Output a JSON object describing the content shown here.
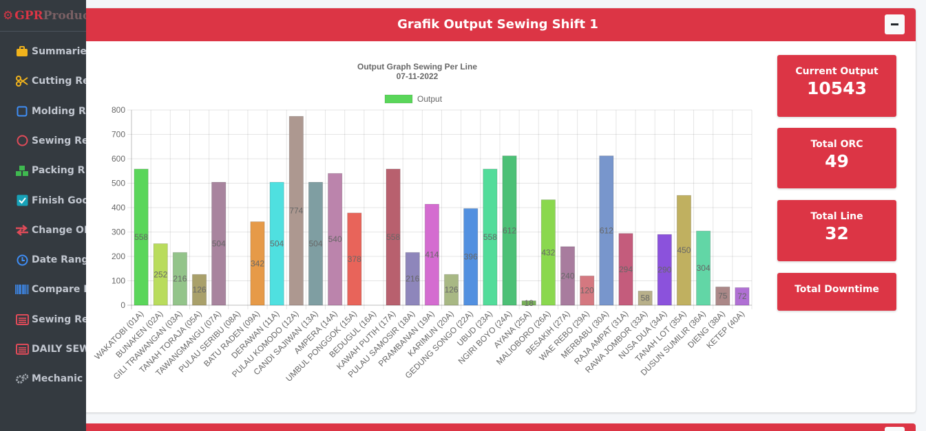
{
  "brand": {
    "prefix": "GPR",
    "suffix": "Produc"
  },
  "sidebar": {
    "items": [
      {
        "label": "Summarie",
        "icon": "briefcase-icon",
        "color": "#f1b31c"
      },
      {
        "label": "Cutting Re",
        "icon": "scissors-icon",
        "color": "#f1b31c"
      },
      {
        "label": "Molding R",
        "icon": "square-icon",
        "color": "#3f8ef6"
      },
      {
        "label": "Sewing Re",
        "icon": "circle-icon",
        "color": "#e04b59"
      },
      {
        "label": "Packing R",
        "icon": "cubes-icon",
        "color": "#3fb950"
      },
      {
        "label": "Finish Goo",
        "icon": "check-square-icon",
        "color": "#17a2b8"
      },
      {
        "label": "Change OI",
        "icon": "exchange-icon",
        "color": "#e04b59"
      },
      {
        "label": "Date Rang",
        "icon": "clock-icon",
        "color": "#3f8ef6"
      },
      {
        "label": "Compare I",
        "icon": "barcode-icon",
        "color": "#3f8ef6"
      },
      {
        "label": "Sewing Re",
        "icon": "list-alt-icon",
        "color": "#e04b59"
      },
      {
        "label": "DAILY SEW",
        "icon": "list-alt-icon",
        "color": "#e04b59"
      },
      {
        "label": "Mechanic I",
        "icon": "gears-icon",
        "color": "#a0a6ad"
      }
    ]
  },
  "card": {
    "title": "Grafik Output Sewing Shift 1",
    "collapse_label": "−"
  },
  "stats": [
    {
      "label": "Current Output",
      "value": "10543"
    },
    {
      "label": "Total ORC",
      "value": "49"
    },
    {
      "label": "Total Line",
      "value": "32"
    },
    {
      "label": "Total Downtime",
      "value": ""
    }
  ],
  "chart_data": {
    "type": "bar",
    "title": "Output Graph Sewing Per Line",
    "subtitle": "07-11-2022",
    "legend": {
      "label": "Output",
      "color": "#5ad65a",
      "placement": "top"
    },
    "ylim": [
      0,
      800
    ],
    "yticks": [
      0,
      100,
      200,
      300,
      400,
      500,
      600,
      700,
      800
    ],
    "grid": true,
    "categories": [
      "WAKATOBI (01A)",
      "BUNAKEN (02A)",
      "GILI TRAWANGAN (03A)",
      "TANAH TORAJA (05A)",
      "TAWANGMANGU (07A)",
      "PULAU SERIBU (08A)",
      "BATU RADEN (09A)",
      "DERAWAN (11A)",
      "PULAU KOMODO (12A)",
      "CANDI SAJIWAN (13A)",
      "AMPERA (14A)",
      "UMBUL PONGGOK (15A)",
      "BEDUGUL (16A)",
      "KAWAH PUTIH (17A)",
      "PULAU SAMOSIR (18A)",
      "PRAMBANAN (19A)",
      "KARIMUN (20A)",
      "GEDUNG SONGO (22A)",
      "UBUD (23A)",
      "NGIRI BOYO (24A)",
      "AYANA (25A)",
      "MALIOBORO (26A)",
      "BESAKIH (27A)",
      "WAE REBO (29A)",
      "MERBABU (30A)",
      "RAJA AMPAT (31A)",
      "RAWA JOMBOR (33A)",
      "NUSA DUA (34A)",
      "TANAH LOT (35A)",
      "DUSUN SUMILIR (36A)",
      "DIENG (38A)",
      "KETEP (40A)"
    ],
    "values": [
      558,
      252,
      216,
      126,
      504,
      0,
      342,
      504,
      774,
      504,
      540,
      378,
      0,
      558,
      216,
      414,
      126,
      396,
      558,
      612,
      18,
      432,
      240,
      120,
      612,
      294,
      58,
      290,
      450,
      304,
      75,
      72
    ],
    "value_labels": [
      "558",
      "252",
      "216",
      "126",
      "504",
      "",
      "342",
      "504",
      "774",
      "504",
      "540",
      "378",
      "",
      "558",
      "216",
      "414",
      "126",
      "396",
      "558",
      "612",
      "18",
      "432",
      "240",
      "120",
      "612",
      "294",
      "58",
      "290",
      "450",
      "304",
      "75",
      "72"
    ],
    "colors": [
      "#5ad65a",
      "#b9dc5c",
      "#93c48a",
      "#a9a06a",
      "#a8849e",
      "#8f9a8c",
      "#e69a48",
      "#4fe0e0",
      "#ad9890",
      "#7f9ea2",
      "#bb84ac",
      "#e8645a",
      "#b0b0b0",
      "#b8606e",
      "#8e86bb",
      "#d46cd0",
      "#a8b884",
      "#5290e0",
      "#52dc9a",
      "#4cc076",
      "#78b05a",
      "#8ad84e",
      "#a87c9e",
      "#d47880",
      "#7896cc",
      "#c45c7c",
      "#b8b08a",
      "#8b52dc",
      "#c0b060",
      "#62d6a6",
      "#ab8888",
      "#b070d4"
    ]
  }
}
